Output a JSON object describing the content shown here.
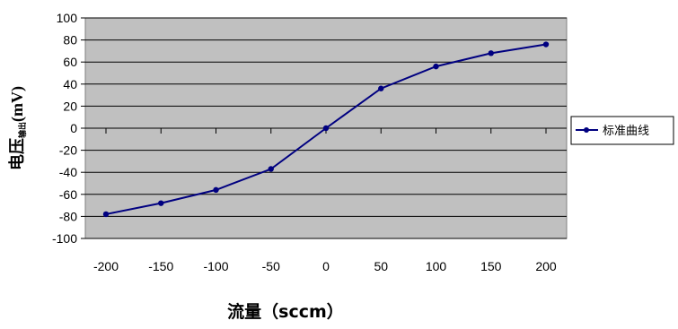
{
  "chart_data": {
    "type": "line",
    "x": [
      -200,
      -150,
      -100,
      -50,
      0,
      50,
      100,
      150,
      200
    ],
    "series": [
      {
        "name": "标准曲线",
        "color": "#000080",
        "values": [
          -78,
          -68,
          -56,
          -37,
          0,
          36,
          56,
          68,
          76
        ]
      }
    ],
    "xlim": [
      -200,
      200
    ],
    "ylim": [
      -100,
      100
    ],
    "x_ticks": [
      "-200",
      "-150",
      "-100",
      "-50",
      "0",
      "50",
      "100",
      "150",
      "200"
    ],
    "y_ticks": [
      "100",
      "80",
      "60",
      "40",
      "20",
      "0",
      "-20",
      "-40",
      "-60",
      "-80",
      "-100"
    ],
    "xlabel": "流量（sccm）",
    "ylabel": {
      "main": "电压",
      "subscript": "输出",
      "unit": "(mV)"
    },
    "grid": true,
    "plot_background": "#c0c0c0",
    "legend_position": "right"
  }
}
